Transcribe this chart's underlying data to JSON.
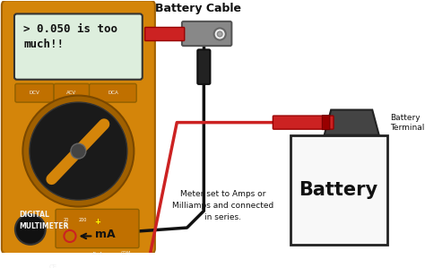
{
  "bg_color": "#ffffff",
  "meter_color": "#D4850A",
  "meter_inner": "#C87800",
  "screen_text": "> 0.050 is too\nmuch!!",
  "screen_bg": "#ddeedd",
  "label_battery_cable": "Battery Cable",
  "label_battery_terminal": "Battery\nTerminal",
  "label_battery": "Battery",
  "label_mA": "mA",
  "label_meter_bottom": "Meter set to Amps or\nMilliamps and connected\nin series.",
  "label_digital": "DIGITAL\nMULTIMETER"
}
